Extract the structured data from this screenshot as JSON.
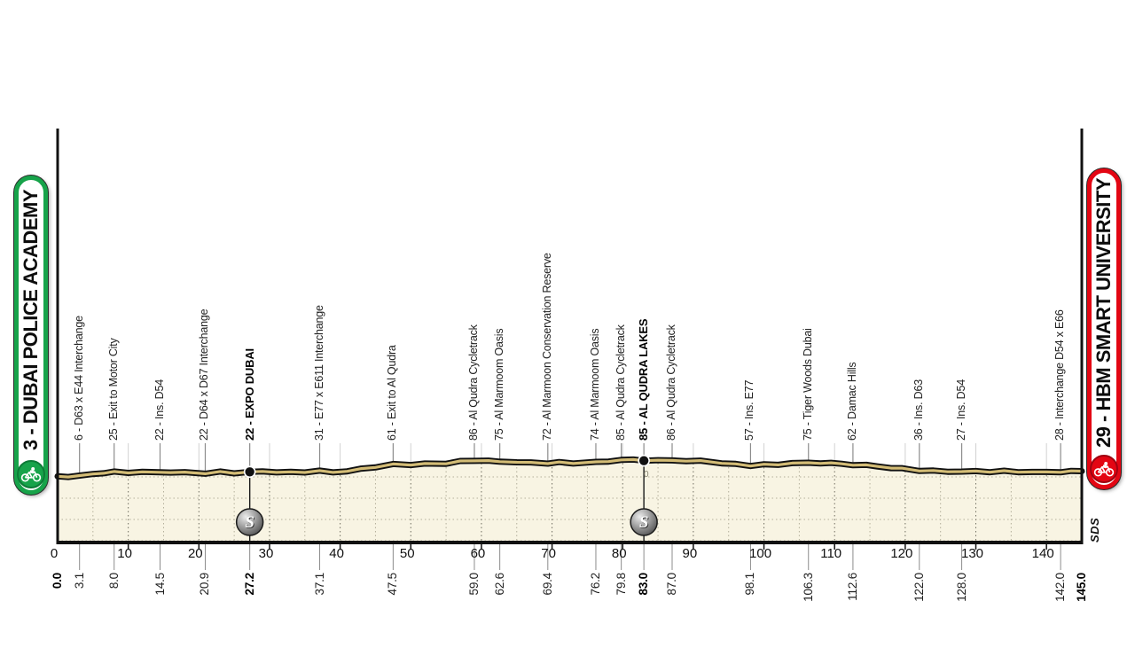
{
  "start_badge": {
    "label": "3 - DUBAI POLICE ACADEMY",
    "icon": "cyclist-icon"
  },
  "finish_badge": {
    "label": "29 - HBM SMART UNIVERSITY",
    "icon": "cyclist-icon"
  },
  "watermark": "SDS",
  "elevation_zero_label": "0",
  "sprint_symbol": "S",
  "colors": {
    "start_green": "#17a34a",
    "start_green_dark": "#0e7a37",
    "finish_red": "#e30613",
    "finish_red_dark": "#9e0410",
    "road_gold": "#d3bc76",
    "road_black": "#111111",
    "fill_cream": "#f8f4e3",
    "grid_light": "#b3af9b",
    "grid_dark": "#6f6d60",
    "upper_grid": "#d2d2d2",
    "waypoint_line_gray": "#8c8c8c"
  },
  "chart_data": {
    "type": "line",
    "title": "Stage profile - Dubai Police Academy to HBM Smart University",
    "distance_unit": "km",
    "elevation_unit": "m",
    "x_range": [
      0,
      145
    ],
    "total_km": "145.0",
    "axis_ticks_km": [
      0,
      10,
      20,
      30,
      40,
      50,
      60,
      70,
      80,
      90,
      100,
      110,
      120,
      130,
      140
    ],
    "grid": "dotted",
    "waypoints": [
      {
        "km": 0.0,
        "elev": 3,
        "label": "",
        "bold": true,
        "type": "start"
      },
      {
        "km": 3.1,
        "elev": 6,
        "label": "6 - D63 x E44 Interchange",
        "bold": false,
        "type": "waypoint"
      },
      {
        "km": 8.0,
        "elev": 25,
        "label": "25 - Exit to Motor City",
        "bold": false,
        "type": "waypoint"
      },
      {
        "km": 14.5,
        "elev": 22,
        "label": "22 - Ins. D54",
        "bold": false,
        "type": "waypoint"
      },
      {
        "km": 20.9,
        "elev": 22,
        "label": "22 - D64 x D67 Interchange",
        "bold": false,
        "type": "waypoint"
      },
      {
        "km": 27.2,
        "elev": 22,
        "label": "22 - EXPO DUBAI",
        "bold": true,
        "type": "sprint"
      },
      {
        "km": 37.1,
        "elev": 31,
        "label": "31 - E77 x E611 Interchange",
        "bold": false,
        "type": "waypoint"
      },
      {
        "km": 47.5,
        "elev": 61,
        "label": "61 - Exit to Al Qudra",
        "bold": false,
        "type": "waypoint"
      },
      {
        "km": 59.0,
        "elev": 86,
        "label": "86 - Al Qudra Cycletrack",
        "bold": false,
        "type": "waypoint"
      },
      {
        "km": 62.6,
        "elev": 75,
        "label": "75 - Al Marmoom Oasis",
        "bold": false,
        "type": "waypoint"
      },
      {
        "km": 69.4,
        "elev": 72,
        "label": "72 - Al Marmoon Conservation Reserve",
        "bold": false,
        "type": "waypoint"
      },
      {
        "km": 76.2,
        "elev": 74,
        "label": "74 - Al Marmoom Oasis",
        "bold": false,
        "type": "waypoint"
      },
      {
        "km": 79.8,
        "elev": 85,
        "label": "85 - Al Qudra Cycletrack",
        "bold": false,
        "type": "waypoint"
      },
      {
        "km": 83.0,
        "elev": 85,
        "label": "85 - AL QUDRA LAKES",
        "bold": true,
        "type": "sprint"
      },
      {
        "km": 87.0,
        "elev": 86,
        "label": "86 - Al Qudra Cycletrack",
        "bold": false,
        "type": "waypoint"
      },
      {
        "km": 98.1,
        "elev": 57,
        "label": "57 - Ins. E77",
        "bold": false,
        "type": "waypoint"
      },
      {
        "km": 106.3,
        "elev": 75,
        "label": "75 - Tiger Woods Dubai",
        "bold": false,
        "type": "waypoint"
      },
      {
        "km": 112.6,
        "elev": 62,
        "label": "62 - Damac Hills",
        "bold": false,
        "type": "waypoint"
      },
      {
        "km": 122.0,
        "elev": 36,
        "label": "36 - Ins. D63",
        "bold": false,
        "type": "waypoint"
      },
      {
        "km": 128.0,
        "elev": 27,
        "label": "27 - Ins. D54",
        "bold": false,
        "type": "waypoint"
      },
      {
        "km": 142.0,
        "elev": 28,
        "label": "28 - Interchange D54 x E66",
        "bold": false,
        "type": "waypoint"
      },
      {
        "km": 145.0,
        "elev": 29,
        "label": "",
        "bold": true,
        "type": "finish"
      }
    ],
    "profile": [
      [
        0,
        3
      ],
      [
        1.5,
        4
      ],
      [
        3.1,
        6
      ],
      [
        5,
        18
      ],
      [
        6.5,
        23
      ],
      [
        8,
        25
      ],
      [
        10,
        21
      ],
      [
        12,
        24
      ],
      [
        14.5,
        22
      ],
      [
        16,
        25
      ],
      [
        18,
        22
      ],
      [
        20.9,
        22
      ],
      [
        23,
        26
      ],
      [
        25,
        22
      ],
      [
        27.2,
        22
      ],
      [
        29,
        26
      ],
      [
        31,
        23
      ],
      [
        33,
        22
      ],
      [
        35,
        27
      ],
      [
        37.1,
        31
      ],
      [
        39,
        27
      ],
      [
        41,
        30
      ],
      [
        43,
        40
      ],
      [
        45,
        50
      ],
      [
        47.5,
        61
      ],
      [
        50,
        63
      ],
      [
        52,
        66
      ],
      [
        55,
        72
      ],
      [
        57,
        80
      ],
      [
        59,
        86
      ],
      [
        61,
        80
      ],
      [
        62.6,
        75
      ],
      [
        65,
        74
      ],
      [
        67,
        71
      ],
      [
        69.4,
        72
      ],
      [
        71,
        75
      ],
      [
        73,
        73
      ],
      [
        76.2,
        74
      ],
      [
        78,
        80
      ],
      [
        79.8,
        85
      ],
      [
        81.5,
        84
      ],
      [
        83,
        85
      ],
      [
        85,
        84
      ],
      [
        87,
        86
      ],
      [
        89,
        85
      ],
      [
        91,
        82
      ],
      [
        94,
        70
      ],
      [
        96,
        62
      ],
      [
        98.1,
        57
      ],
      [
        100,
        60
      ],
      [
        102,
        64
      ],
      [
        104,
        72
      ],
      [
        106.3,
        75
      ],
      [
        108,
        74
      ],
      [
        109.5,
        70
      ],
      [
        111,
        66
      ],
      [
        112.6,
        62
      ],
      [
        114.5,
        56
      ],
      [
        116,
        52
      ],
      [
        118,
        46
      ],
      [
        119.5,
        42
      ],
      [
        122,
        36
      ],
      [
        124,
        32
      ],
      [
        126,
        29
      ],
      [
        128,
        27
      ],
      [
        130,
        26
      ],
      [
        132,
        25
      ],
      [
        134,
        27
      ],
      [
        136,
        27
      ],
      [
        138,
        26
      ],
      [
        140,
        27
      ],
      [
        142,
        28
      ],
      [
        143.5,
        28
      ],
      [
        145,
        29
      ]
    ]
  }
}
